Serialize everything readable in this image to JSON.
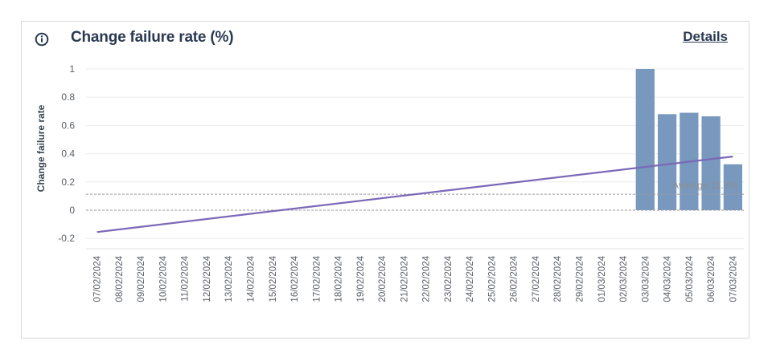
{
  "widget": {
    "title": "Change failure rate (%)",
    "details_link": "Details",
    "info_icon": "info-circle-icon"
  },
  "colors": {
    "bar": "#7898bd",
    "trend": "#7b68b8",
    "title": "#2b3a52",
    "grid": "#ececec",
    "reference": "#9a9a9a"
  },
  "chart_data": {
    "type": "bar",
    "title": "Change failure rate (%)",
    "ylabel": "Change failure rate",
    "xlabel": "",
    "ylim": [
      -0.25,
      1.05
    ],
    "yticks": [
      -0.2,
      0,
      0.2,
      0.4,
      0.6,
      0.8,
      1
    ],
    "ytick_labels": [
      "-0.2",
      "0",
      "0.2",
      "0.4",
      "0.6",
      "0.8",
      "1"
    ],
    "categories": [
      "07/02/2024",
      "08/02/2024",
      "09/02/2024",
      "10/02/2024",
      "11/02/2024",
      "12/02/2024",
      "13/02/2024",
      "14/02/2024",
      "15/02/2024",
      "16/02/2024",
      "17/02/2024",
      "18/02/2024",
      "19/02/2024",
      "20/02/2024",
      "21/02/2024",
      "22/02/2024",
      "23/02/2024",
      "24/02/2024",
      "25/02/2024",
      "26/02/2024",
      "27/02/2024",
      "28/02/2024",
      "29/02/2024",
      "01/03/2024",
      "02/03/2024",
      "03/03/2024",
      "04/03/2024",
      "05/03/2024",
      "06/03/2024",
      "07/03/2024"
    ],
    "values": [
      null,
      null,
      null,
      null,
      null,
      null,
      null,
      null,
      null,
      null,
      null,
      null,
      null,
      null,
      null,
      null,
      null,
      null,
      null,
      null,
      null,
      null,
      null,
      null,
      null,
      1.0,
      0.68,
      0.69,
      0.665,
      0.325
    ],
    "trend_line": {
      "start": -0.155,
      "end": 0.38
    },
    "average": {
      "value": 0.113,
      "label": "Average 11.3%"
    },
    "zero_line": true,
    "grid": true,
    "legend": "none"
  }
}
